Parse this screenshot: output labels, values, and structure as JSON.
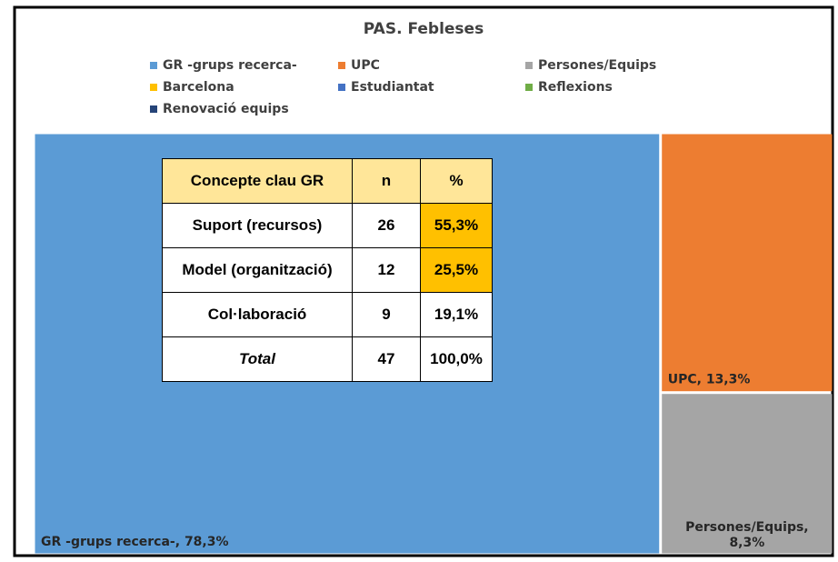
{
  "chart_data": {
    "type": "treemap",
    "title": "PAS. Febleses",
    "categories": [
      "GR -grups recerca-",
      "UPC",
      "Persones/Equips",
      "Barcelona",
      "Estudiantat",
      "Reflexions",
      "Renovació equips"
    ],
    "values": [
      78.3,
      13.3,
      8.3,
      0,
      0,
      0,
      0
    ],
    "value_labels": [
      "78,3%",
      "13,3%",
      "8,3%",
      null,
      null,
      null,
      null
    ],
    "colors": [
      "#5b9bd5",
      "#ed7d31",
      "#a5a5a5",
      "#ffc000",
      "#4472c4",
      "#70ad47",
      "#264478"
    ],
    "legend": "top"
  },
  "table": {
    "header": [
      "Concepte clau GR",
      "n",
      "%"
    ],
    "rows": [
      [
        "Suport (recursos)",
        "26",
        "55,3%"
      ],
      [
        "Model (organització)",
        "12",
        "25,5%"
      ],
      [
        "Col·laboració",
        "9",
        "19,1%"
      ],
      [
        "Total",
        "47",
        "100,0%"
      ]
    ]
  }
}
